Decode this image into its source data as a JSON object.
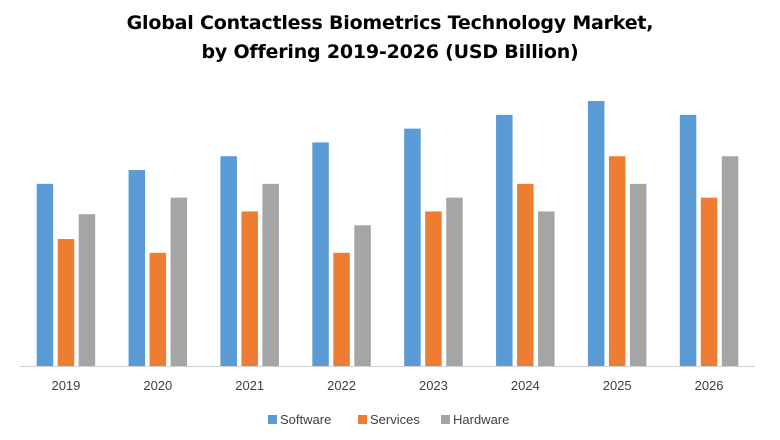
{
  "chart_data": {
    "type": "bar",
    "title_lines": [
      "Global Contactless Biometrics Technology  Market,",
      "by Offering 2019-2026 (USD Billion)"
    ],
    "xlabel": "",
    "ylabel": "",
    "categories": [
      "2019",
      "2020",
      "2021",
      "2022",
      "2023",
      "2024",
      "2025",
      "2026"
    ],
    "series": [
      {
        "name": "Software",
        "color": "#5b9bd5",
        "values": [
          6.6,
          7.1,
          7.6,
          8.1,
          8.6,
          9.1,
          9.6,
          9.1
        ]
      },
      {
        "name": "Services",
        "color": "#ed7d31",
        "values": [
          4.6,
          4.1,
          5.6,
          4.1,
          5.6,
          6.6,
          7.6,
          6.1
        ]
      },
      {
        "name": "Hardware",
        "color": "#a5a5a5",
        "values": [
          5.5,
          6.1,
          6.6,
          5.1,
          6.1,
          5.6,
          6.6,
          7.6
        ]
      }
    ],
    "ylim": [
      0,
      10
    ],
    "y_axis_labels_shown": false,
    "grid": false,
    "legend_position": "bottom"
  }
}
